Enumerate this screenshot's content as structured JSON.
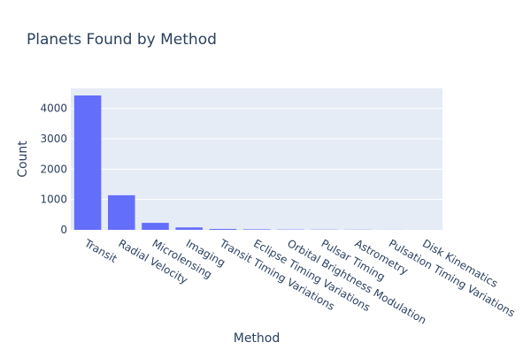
{
  "chart_data": {
    "type": "bar",
    "title": "Planets Found by Method",
    "xlabel": "Method",
    "ylabel": "Count",
    "categories": [
      "Transit",
      "Radial Velocity",
      "Microlensing",
      "Imaging",
      "Transit Timing Variations",
      "Eclipse Timing Variations",
      "Orbital Brightness Modulation",
      "Pulsar Timing",
      "Astrometry",
      "Pulsation Timing Variations",
      "Disk Kinematics"
    ],
    "values": [
      4430,
      1140,
      230,
      80,
      30,
      17,
      9,
      7,
      5,
      2,
      1
    ],
    "ylim": [
      0,
      4663
    ],
    "yticks": [
      0,
      1000,
      2000,
      3000,
      4000
    ],
    "ytick_labels": [
      "0",
      "1000",
      "2000",
      "3000",
      "4000"
    ],
    "grid": true,
    "bar_color": "#636efa",
    "plot_bg": "#e5ecf6",
    "text_color": "#2a3f5f"
  }
}
